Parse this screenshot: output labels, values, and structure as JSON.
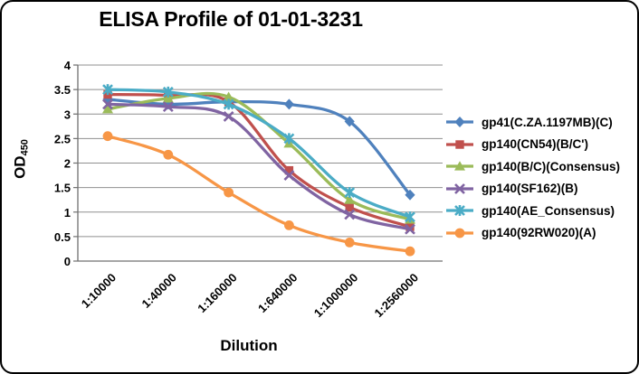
{
  "chart_data": {
    "type": "line",
    "title": "ELISA Profile of 01-01-3231",
    "xlabel": "Dilution",
    "ylabel": "OD",
    "ylabel_subscript": "450",
    "categories": [
      "1:10000",
      "1:40000",
      "1:160000",
      "1:640000",
      "1:1000000",
      "1:2560000"
    ],
    "series": [
      {
        "name": "gp41(C.ZA.1197MB)(C)",
        "color": "#4F81BD",
        "marker": "diamond",
        "values": [
          3.3,
          3.2,
          3.25,
          3.2,
          2.85,
          1.35
        ]
      },
      {
        "name": "gp140(CN54)(B/C')",
        "color": "#C0504D",
        "marker": "square",
        "values": [
          3.4,
          3.38,
          3.25,
          1.85,
          1.1,
          0.7
        ]
      },
      {
        "name": "gp140(B/C)(Consensus)",
        "color": "#9BBB59",
        "marker": "triangle",
        "values": [
          3.1,
          3.32,
          3.35,
          2.4,
          1.25,
          0.85
        ]
      },
      {
        "name": "gp140(SF162)(B)",
        "color": "#8064A2",
        "marker": "x",
        "values": [
          3.2,
          3.15,
          2.95,
          1.75,
          0.95,
          0.65
        ]
      },
      {
        "name": "gp140(AE_Consensus)",
        "color": "#4BACC6",
        "marker": "asterisk",
        "values": [
          3.5,
          3.45,
          3.2,
          2.5,
          1.4,
          0.9
        ]
      },
      {
        "name": "gp140(92RW020)(A)",
        "color": "#F79646",
        "marker": "circle",
        "values": [
          2.55,
          2.17,
          1.4,
          0.73,
          0.38,
          0.2
        ]
      }
    ],
    "y_axis": {
      "min": 0,
      "max": 4,
      "step": 0.5
    },
    "grid": "horizontal",
    "legend_position": "right",
    "colors": {
      "gridline": "#8F8F8F",
      "axis": "#707070",
      "text": "#000000",
      "background": "#FFFFFF",
      "frame_border": "#000000"
    }
  }
}
